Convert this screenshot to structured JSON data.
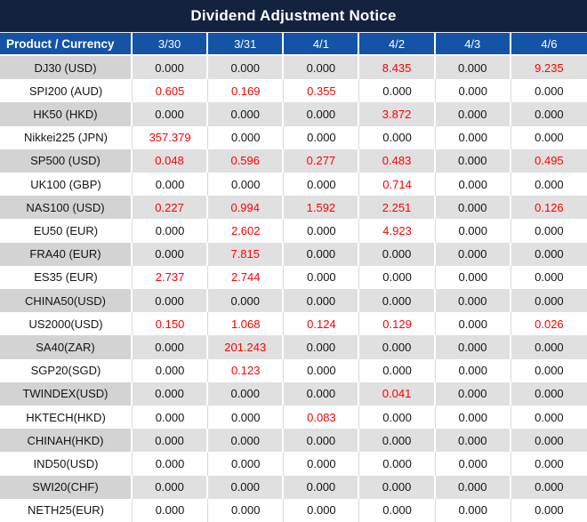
{
  "title_bar": {
    "title": "Dividend Adjustment Notice"
  },
  "colors": {
    "title_bg": "#13223f",
    "header_bg": "#1453a6",
    "header_text": "#ffffff",
    "stripe_name_bg": "#d3d3d3",
    "stripe_value_bg": "#e0e0e0",
    "plain_row_bg": "#ffffff",
    "value_text": "#141414",
    "highlight_text": "#ff0000",
    "grid_line_plain": "#d9d9d9",
    "grid_line_striped": "#ffffff"
  },
  "chart_data": {
    "type": "table",
    "title": "Dividend Adjustment Notice",
    "row_header": "Product / Currency",
    "columns": [
      "3/30",
      "3/31",
      "4/1",
      "4/2",
      "4/3",
      "4/6"
    ],
    "rows": [
      {
        "product": "DJ30 (USD)",
        "values": [
          "0.000",
          "0.000",
          "0.000",
          "8.435",
          "0.000",
          "9.235"
        ]
      },
      {
        "product": "SPI200 (AUD)",
        "values": [
          "0.605",
          "0.169",
          "0.355",
          "0.000",
          "0.000",
          "0.000"
        ]
      },
      {
        "product": "HK50 (HKD)",
        "values": [
          "0.000",
          "0.000",
          "0.000",
          "3.872",
          "0.000",
          "0.000"
        ]
      },
      {
        "product": "Nikkei225 (JPN)",
        "values": [
          "357.379",
          "0.000",
          "0.000",
          "0.000",
          "0.000",
          "0.000"
        ]
      },
      {
        "product": "SP500 (USD)",
        "values": [
          "0.048",
          "0.596",
          "0.277",
          "0.483",
          "0.000",
          "0.495"
        ]
      },
      {
        "product": "UK100 (GBP)",
        "values": [
          "0.000",
          "0.000",
          "0.000",
          "0.714",
          "0.000",
          "0.000"
        ]
      },
      {
        "product": "NAS100 (USD)",
        "values": [
          "0.227",
          "0.994",
          "1.592",
          "2.251",
          "0.000",
          "0.126"
        ]
      },
      {
        "product": "EU50 (EUR)",
        "values": [
          "0.000",
          "2.602",
          "0.000",
          "4.923",
          "0.000",
          "0.000"
        ]
      },
      {
        "product": "FRA40 (EUR)",
        "values": [
          "0.000",
          "7.815",
          "0.000",
          "0.000",
          "0.000",
          "0.000"
        ]
      },
      {
        "product": "ES35 (EUR)",
        "values": [
          "2.737",
          "2.744",
          "0.000",
          "0.000",
          "0.000",
          "0.000"
        ]
      },
      {
        "product": "CHINA50(USD)",
        "values": [
          "0.000",
          "0.000",
          "0.000",
          "0.000",
          "0.000",
          "0.000"
        ]
      },
      {
        "product": "US2000(USD)",
        "values": [
          "0.150",
          "1.068",
          "0.124",
          "0.129",
          "0.000",
          "0.026"
        ]
      },
      {
        "product": "SA40(ZAR)",
        "values": [
          "0.000",
          "201.243",
          "0.000",
          "0.000",
          "0.000",
          "0.000"
        ]
      },
      {
        "product": "SGP20(SGD)",
        "values": [
          "0.000",
          "0.123",
          "0.000",
          "0.000",
          "0.000",
          "0.000"
        ]
      },
      {
        "product": "TWINDEX(USD)",
        "values": [
          "0.000",
          "0.000",
          "0.000",
          "0.041",
          "0.000",
          "0.000"
        ]
      },
      {
        "product": "HKTECH(HKD)",
        "values": [
          "0.000",
          "0.000",
          "0.083",
          "0.000",
          "0.000",
          "0.000"
        ]
      },
      {
        "product": "CHINAH(HKD)",
        "values": [
          "0.000",
          "0.000",
          "0.000",
          "0.000",
          "0.000",
          "0.000"
        ]
      },
      {
        "product": "IND50(USD)",
        "values": [
          "0.000",
          "0.000",
          "0.000",
          "0.000",
          "0.000",
          "0.000"
        ]
      },
      {
        "product": "SWI20(CHF)",
        "values": [
          "0.000",
          "0.000",
          "0.000",
          "0.000",
          "0.000",
          "0.000"
        ]
      },
      {
        "product": "NETH25(EUR)",
        "values": [
          "0.000",
          "0.000",
          "0.000",
          "0.000",
          "0.000",
          "0.000"
        ]
      }
    ],
    "legend_note": "non-zero adjustment values are rendered in red; zero values in black",
    "layout": {
      "striping": "alternating rows shaded gray starting with first data row",
      "grid": "on"
    }
  }
}
